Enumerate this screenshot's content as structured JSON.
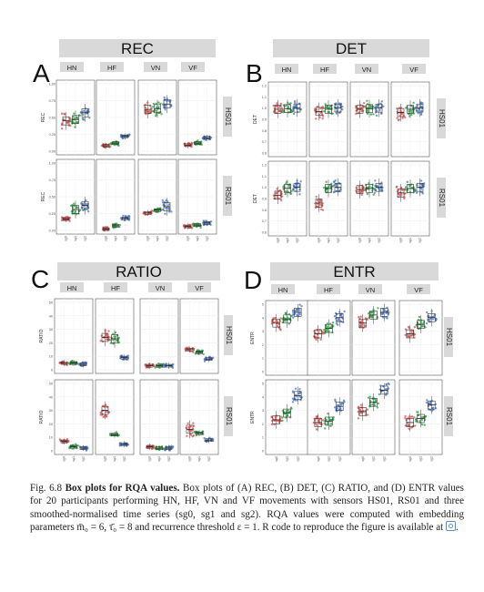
{
  "chart_data": [
    {
      "type": "box",
      "panel_letter": "A",
      "title": "REC",
      "ylabel": "REC",
      "ylim": [
        0,
        1.0
      ],
      "yticks": [
        0,
        0.25,
        0.5,
        0.75,
        1.0
      ],
      "ytick_labels": [
        "0.00",
        "0.25",
        "0.50",
        "0.75",
        "1.00"
      ],
      "columns": [
        "HN",
        "HF",
        "VN",
        "VF"
      ],
      "rows": [
        "HS01",
        "RS01"
      ],
      "x_labels": [
        "sg0",
        "sg1",
        "sg2"
      ],
      "data": {
        "HS01": {
          "HN": [
            0.45,
            0.47,
            0.57
          ],
          "HF": [
            0.08,
            0.12,
            0.22
          ],
          "VN": [
            0.62,
            0.63,
            0.7
          ],
          "VF": [
            0.09,
            0.12,
            0.2
          ]
        },
        "RS01": {
          "HN": [
            0.17,
            0.31,
            0.37
          ],
          "HF": [
            0.02,
            0.07,
            0.18
          ],
          "VN": [
            0.26,
            0.3,
            0.35
          ],
          "VF": [
            0.06,
            0.08,
            0.11
          ]
        }
      }
    },
    {
      "type": "box",
      "panel_letter": "B",
      "title": "DET",
      "ylabel": "DET",
      "ylim": [
        0.6,
        1.2
      ],
      "yticks": [
        0.6,
        0.7,
        0.8,
        0.9,
        1.0,
        1.1,
        1.2
      ],
      "ytick_labels": [
        "0.6",
        "0.7",
        "0.8",
        "0.9",
        "1.0",
        "1.1",
        "1.2"
      ],
      "columns": [
        "HN",
        "HF",
        "VN",
        "VF"
      ],
      "rows": [
        "HS01",
        "RS01"
      ],
      "x_labels": [
        "sg0",
        "sg1",
        "sg2"
      ],
      "data": {
        "HS01": {
          "HN": [
            0.99,
            0.995,
            1.0
          ],
          "HF": [
            0.97,
            0.99,
            1.0
          ],
          "VN": [
            0.99,
            0.995,
            1.0
          ],
          "VF": [
            0.96,
            0.99,
            1.0
          ]
        },
        "RS01": {
          "HN": [
            0.93,
            0.99,
            1.0
          ],
          "HF": [
            0.86,
            0.99,
            1.0
          ],
          "VN": [
            0.98,
            0.99,
            1.0
          ],
          "VF": [
            0.95,
            0.99,
            1.0
          ]
        }
      }
    },
    {
      "type": "box",
      "panel_letter": "C",
      "title": "RATIO",
      "ylabel": "RATIO",
      "ylim": [
        0,
        50
      ],
      "yticks": [
        0,
        10,
        20,
        30,
        40,
        50
      ],
      "ytick_labels": [
        "0",
        "10",
        "20",
        "30",
        "40",
        "50"
      ],
      "columns": [
        "HN",
        "HF",
        "VN",
        "VF"
      ],
      "rows": [
        "HS01",
        "RS01"
      ],
      "x_labels": [
        "sg0",
        "sg1",
        "sg2"
      ],
      "data": {
        "HS01": {
          "HN": [
            5,
            5,
            4
          ],
          "HF": [
            24,
            23,
            9
          ],
          "VN": [
            3,
            3,
            3
          ],
          "VF": [
            15,
            13,
            8
          ]
        },
        "RS01": {
          "HN": [
            7,
            3,
            2
          ],
          "HF": [
            30,
            12,
            5
          ],
          "VN": [
            3,
            2,
            2
          ],
          "VF": [
            16,
            13,
            8
          ]
        }
      }
    },
    {
      "type": "box",
      "panel_letter": "D",
      "title": "ENTR",
      "ylabel": "ENTR",
      "ylim": [
        0,
        5
      ],
      "yticks": [
        0,
        1,
        2,
        3,
        4,
        5
      ],
      "ytick_labels": [
        "0",
        "1",
        "2",
        "3",
        "4",
        "5"
      ],
      "columns": [
        "HN",
        "HF",
        "VN",
        "VF"
      ],
      "rows": [
        "HS01",
        "RS01"
      ],
      "x_labels": [
        "sg0",
        "sg1",
        "sg2"
      ],
      "data": {
        "HS01": {
          "HN": [
            3.6,
            3.9,
            4.4
          ],
          "HF": [
            2.8,
            3.2,
            4.0
          ],
          "VN": [
            3.6,
            4.2,
            4.4
          ],
          "VF": [
            2.8,
            3.5,
            4.0
          ]
        },
        "RS01": {
          "HN": [
            2.3,
            2.8,
            4.1
          ],
          "HF": [
            2.1,
            2.2,
            3.3
          ],
          "VN": [
            2.9,
            3.6,
            4.5
          ],
          "VF": [
            2.1,
            2.4,
            3.4
          ]
        }
      }
    }
  ],
  "series_colors": [
    "#d9534f",
    "#2e9e44",
    "#4a78c8"
  ],
  "caption": {
    "label": "Fig. 6.8",
    "bold": "Box plots for RQA values.",
    "line1": "Box plots of (A) REC, (B) DET, (C) RATIO,",
    "line2": "and (D) ENTR values for 20 participants performing HN, HF, VN and VF movements",
    "line3": "with sensors HS01, RS01 and three smoothed-normalised time series (sg0, sg1 and sg2).",
    "line4": "RQA values were computed with embedding parameters m̄₀ = 6, τ̄₀ = 8 and recurrence",
    "line5": "threshold ε = 1. R code to reproduce the figure is available at"
  }
}
